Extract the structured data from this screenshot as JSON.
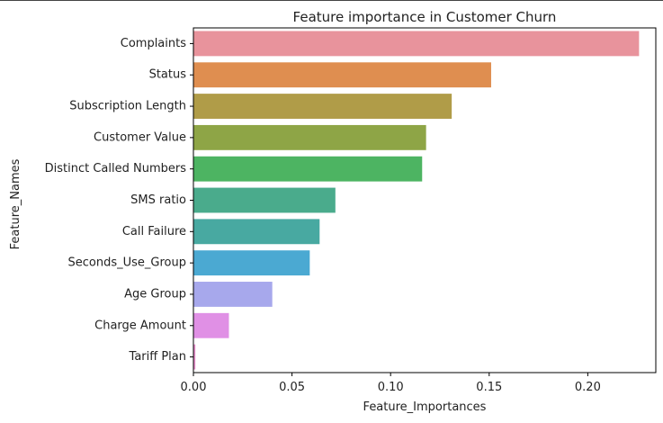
{
  "chart_data": {
    "type": "bar",
    "orientation": "horizontal",
    "title": "Feature importance in Customer Churn",
    "xlabel": "Feature_Importances",
    "ylabel": "Feature_Names",
    "xlim": [
      0.0,
      0.2345
    ],
    "xticks": [
      0.0,
      0.05,
      0.1,
      0.15,
      0.2
    ],
    "xtick_labels": [
      "0.00",
      "0.05",
      "0.10",
      "0.15",
      "0.20"
    ],
    "grid": false,
    "categories": [
      "Complaints",
      "Status",
      "Subscription Length",
      "Customer Value",
      "Distinct Called Numbers",
      "SMS ratio",
      "Call Failure",
      "Seconds_Use_Group",
      "Age Group",
      "Charge Amount",
      "Tariff Plan"
    ],
    "values": [
      0.226,
      0.151,
      0.131,
      0.118,
      0.116,
      0.072,
      0.064,
      0.059,
      0.04,
      0.018,
      0.001
    ],
    "colors": [
      "#e8939c",
      "#df8e50",
      "#b09c48",
      "#8ea546",
      "#4db462",
      "#4aab8c",
      "#48a9a1",
      "#4ba9d2",
      "#a7a8ec",
      "#e090e5",
      "#e78ecb"
    ]
  }
}
